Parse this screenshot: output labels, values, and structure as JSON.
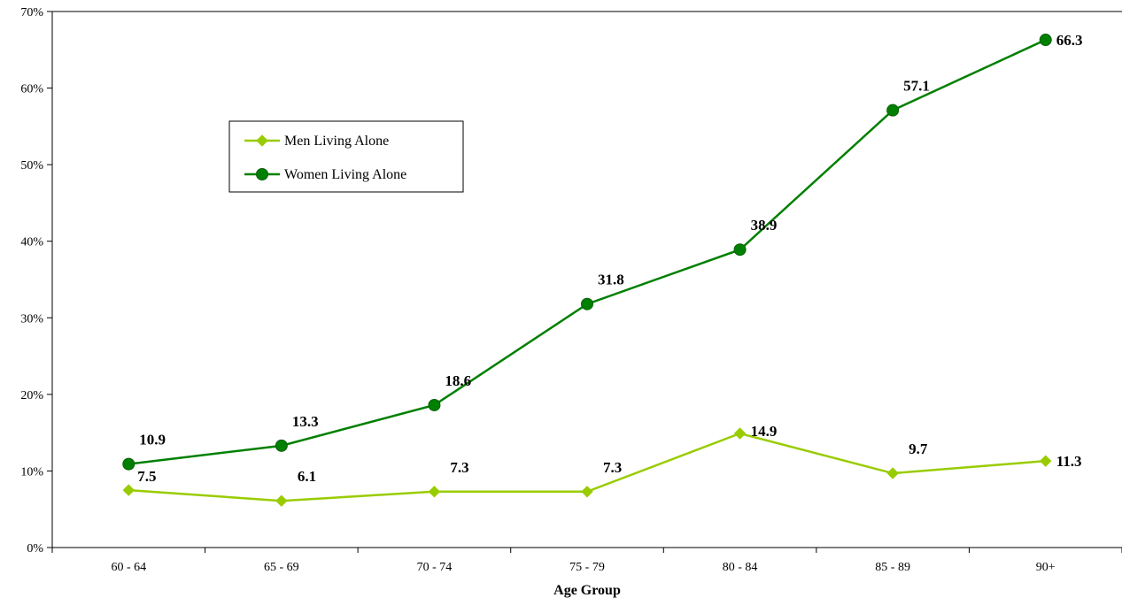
{
  "chart_data": {
    "type": "line",
    "title": "",
    "xlabel": "Age Group",
    "ylabel": "",
    "categories": [
      "60 - 64",
      "65 - 69",
      "70 - 74",
      "75 - 79",
      "80 - 84",
      "85 - 89",
      "90+"
    ],
    "ylim": [
      0,
      70
    ],
    "y_ticks": [
      0,
      10,
      20,
      30,
      40,
      50,
      60,
      70
    ],
    "y_tick_labels": [
      "0%",
      "10%",
      "20%",
      "30%",
      "40%",
      "50%",
      "60%",
      "70%"
    ],
    "grid": false,
    "legend_position": "upper-left",
    "series": [
      {
        "name": "Men Living Alone",
        "values": [
          7.5,
          6.1,
          7.3,
          7.3,
          14.9,
          9.7,
          11.3
        ],
        "labels": [
          "7.5",
          "6.1",
          "7.3",
          "7.3",
          "14.9",
          "9.7",
          "11.3"
        ],
        "color": "#99cc00",
        "marker": "diamond"
      },
      {
        "name": "Women Living Alone",
        "values": [
          10.9,
          13.3,
          18.6,
          31.8,
          38.9,
          57.1,
          66.3
        ],
        "labels": [
          "10.9",
          "13.3",
          "18.6",
          "31.8",
          "38.9",
          "57.1",
          "66.3"
        ],
        "color": "#008000",
        "marker": "circle"
      }
    ]
  }
}
